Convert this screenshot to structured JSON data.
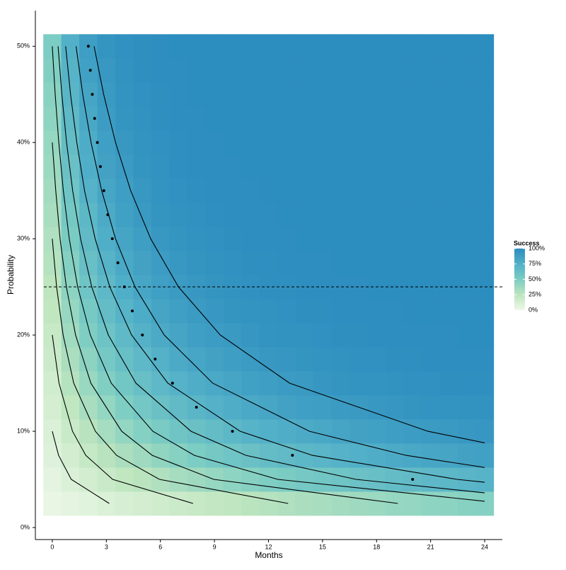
{
  "chart_data": {
    "type": "heatmap",
    "x_label": "Months",
    "y_label": "Probability",
    "xlim": [
      -0.94,
      24.98
    ],
    "ylim": [
      -1.25,
      53.7
    ],
    "xticks": [
      0,
      3,
      6,
      9,
      12,
      15,
      18,
      21,
      24
    ],
    "yticks": [
      {
        "value": 0,
        "label": "0%"
      },
      {
        "value": 10,
        "label": "10%"
      },
      {
        "value": 20,
        "label": "20%"
      },
      {
        "value": 30,
        "label": "30%"
      },
      {
        "value": 40,
        "label": "40%"
      },
      {
        "value": 50,
        "label": "50%"
      }
    ],
    "cell_x": [
      0,
      1,
      2,
      3,
      4,
      5,
      6,
      7,
      8,
      9,
      10,
      11,
      12,
      13,
      14,
      15,
      16,
      17,
      18,
      19,
      20,
      21,
      22,
      23,
      24
    ],
    "cell_y": [
      2.5,
      5,
      7.5,
      10,
      12.5,
      15,
      17.5,
      20,
      22.5,
      25,
      27.5,
      30,
      32.5,
      35,
      37.5,
      40,
      42.5,
      45,
      47.5,
      50
    ],
    "z": [
      [
        3,
        5,
        7,
        10,
        12,
        14,
        16,
        18,
        20,
        22,
        24,
        26,
        28,
        30,
        32,
        33,
        35,
        37,
        38,
        40,
        41,
        43,
        44,
        46,
        47
      ],
      [
        5,
        10,
        14,
        19,
        23,
        26,
        30,
        34,
        37,
        40,
        43,
        46,
        49,
        51,
        54,
        56,
        58,
        60,
        62,
        64,
        66,
        68,
        69,
        71,
        72
      ],
      [
        8,
        14,
        21,
        27,
        32,
        37,
        42,
        46,
        50,
        54,
        58,
        61,
        64,
        66,
        69,
        71,
        73,
        75,
        77,
        79,
        81,
        82,
        83,
        85,
        86
      ],
      [
        10,
        19,
        27,
        34,
        41,
        47,
        52,
        57,
        61,
        65,
        69,
        72,
        75,
        77,
        79,
        81,
        83,
        85,
        86,
        88,
        89,
        90,
        91,
        92,
        93
      ],
      [
        13,
        23,
        33,
        41,
        49,
        55,
        61,
        66,
        70,
        74,
        77,
        80,
        82,
        85,
        87,
        88,
        90,
        91,
        92,
        93,
        94,
        95,
        95,
        96,
        96
      ],
      [
        15,
        28,
        39,
        48,
        56,
        62,
        68,
        73,
        77,
        80,
        83,
        86,
        88,
        90,
        91,
        93,
        94,
        95,
        95,
        96,
        97,
        97,
        98,
        98,
        98
      ],
      [
        18,
        32,
        44,
        54,
        62,
        68,
        74,
        79,
        82,
        85,
        88,
        90,
        92,
        93,
        94,
        95,
        96,
        97,
        97,
        98,
        98,
        99,
        99,
        99,
        99
      ],
      [
        20,
        36,
        49,
        59,
        67,
        74,
        79,
        83,
        87,
        89,
        91,
        93,
        95,
        96,
        96,
        97,
        98,
        98,
        99,
        99,
        99,
        99,
        99,
        100,
        100
      ],
      [
        23,
        40,
        53,
        64,
        72,
        78,
        83,
        87,
        90,
        92,
        94,
        95,
        96,
        97,
        98,
        98,
        99,
        99,
        99,
        99,
        100,
        100,
        100,
        100,
        100
      ],
      [
        25,
        44,
        58,
        68,
        76,
        82,
        87,
        90,
        92,
        94,
        96,
        97,
        98,
        98,
        99,
        99,
        99,
        99,
        100,
        100,
        100,
        100,
        100,
        100,
        100
      ],
      [
        28,
        47,
        62,
        72,
        80,
        85,
        89,
        92,
        94,
        96,
        97,
        98,
        98,
        99,
        99,
        99,
        100,
        100,
        100,
        100,
        100,
        100,
        100,
        100,
        100
      ],
      [
        30,
        51,
        66,
        76,
        83,
        88,
        92,
        94,
        96,
        97,
        98,
        99,
        99,
        99,
        100,
        100,
        100,
        100,
        100,
        100,
        100,
        100,
        100,
        100,
        100
      ],
      [
        33,
        54,
        69,
        79,
        86,
        91,
        94,
        96,
        97,
        98,
        99,
        99,
        99,
        100,
        100,
        100,
        100,
        100,
        100,
        100,
        100,
        100,
        100,
        100,
        100
      ],
      [
        35,
        58,
        73,
        82,
        88,
        92,
        95,
        97,
        98,
        99,
        99,
        99,
        100,
        100,
        100,
        100,
        100,
        100,
        100,
        100,
        100,
        100,
        100,
        100,
        100
      ],
      [
        38,
        61,
        76,
        85,
        90,
        94,
        96,
        98,
        99,
        99,
        99,
        100,
        100,
        100,
        100,
        100,
        100,
        100,
        100,
        100,
        100,
        100,
        100,
        100,
        100
      ],
      [
        40,
        64,
        78,
        87,
        92,
        95,
        97,
        98,
        99,
        99,
        100,
        100,
        100,
        100,
        100,
        100,
        100,
        100,
        100,
        100,
        100,
        100,
        100,
        100,
        100
      ],
      [
        43,
        67,
        81,
        89,
        94,
        96,
        98,
        99,
        99,
        100,
        100,
        100,
        100,
        100,
        100,
        100,
        100,
        100,
        100,
        100,
        100,
        100,
        100,
        100,
        100
      ],
      [
        45,
        70,
        83,
        91,
        95,
        97,
        98,
        99,
        100,
        100,
        100,
        100,
        100,
        100,
        100,
        100,
        100,
        100,
        100,
        100,
        100,
        100,
        100,
        100,
        100
      ],
      [
        48,
        72,
        86,
        92,
        96,
        98,
        99,
        99,
        100,
        100,
        100,
        100,
        100,
        100,
        100,
        100,
        100,
        100,
        100,
        100,
        100,
        100,
        100,
        100,
        100
      ],
      [
        50,
        75,
        88,
        94,
        97,
        98,
        99,
        100,
        100,
        100,
        100,
        100,
        100,
        100,
        100,
        100,
        100,
        100,
        100,
        100,
        100,
        100,
        100,
        100,
        100
      ]
    ],
    "zlim": [
      0,
      100
    ],
    "colorscale": [
      "#eef8e8",
      "#bde5be",
      "#7ccdc3",
      "#52b0c8",
      "#2c8dbf"
    ],
    "legend_title": "Success",
    "legend_ticks": [
      {
        "value": 0,
        "label": "0%"
      },
      {
        "value": 25,
        "label": "25%"
      },
      {
        "value": 50,
        "label": "50%"
      },
      {
        "value": 75,
        "label": "75%"
      },
      {
        "value": 100,
        "label": "100%"
      }
    ],
    "contours": [
      {
        "x": [
          0,
          0.35,
          1.05,
          3.16
        ],
        "y": [
          10,
          7.5,
          5,
          2.5
        ]
      },
      {
        "x": [
          0,
          0.37,
          1.12,
          1.86,
          3.35,
          7.81
        ],
        "y": [
          20,
          15,
          10,
          7.5,
          5,
          2.5
        ]
      },
      {
        "x": [
          0,
          0.24,
          0.6,
          1.19,
          2.39,
          3.57,
          5.95,
          13.09
        ],
        "y": [
          30,
          25,
          20,
          15,
          10,
          7.5,
          5,
          2.5
        ]
      },
      {
        "x": [
          0,
          0.19,
          0.43,
          0.78,
          1.29,
          2.14,
          3.85,
          5.55,
          8.96,
          19.18
        ],
        "y": [
          40,
          35,
          30,
          25,
          20,
          15,
          10,
          7.5,
          5,
          2.5
        ]
      },
      {
        "x": [
          0,
          0.16,
          0.36,
          0.61,
          0.94,
          1.41,
          2.11,
          3.27,
          5.58,
          7.89,
          12.51,
          24
        ],
        "y": [
          50,
          45,
          40,
          35,
          30,
          25,
          20,
          15,
          10,
          7.5,
          5,
          2.73
        ]
      },
      {
        "x": [
          0.32,
          0.53,
          0.79,
          1.13,
          1.57,
          2.19,
          3.11,
          4.64,
          7.7,
          10.75,
          16.86,
          24
        ],
        "y": [
          50,
          45,
          40,
          35,
          30,
          25,
          20,
          15,
          10,
          7.5,
          5,
          3.6
        ]
      },
      {
        "x": [
          0.74,
          1.01,
          1.36,
          1.79,
          2.38,
          3.19,
          4.4,
          6.41,
          10.43,
          14.44,
          22.47,
          24
        ],
        "y": [
          50,
          45,
          40,
          35,
          30,
          25,
          20,
          15,
          10,
          7.5,
          5,
          4.7
        ]
      },
      {
        "x": [
          1.32,
          1.69,
          2.15,
          2.74,
          3.51,
          4.59,
          6.21,
          8.9,
          14.28,
          19.64,
          24
        ],
        "y": [
          50,
          45,
          40,
          35,
          30,
          25,
          20,
          15,
          10,
          7.5,
          6.24
        ]
      },
      {
        "x": [
          2.32,
          2.85,
          3.51,
          4.35,
          5.46,
          7.0,
          9.32,
          13.17,
          20.85,
          24
        ],
        "y": [
          50,
          45,
          40,
          35,
          30,
          25,
          20,
          15,
          10,
          8.8
        ]
      }
    ],
    "points": {
      "x": [
        2,
        2.11,
        2.22,
        2.35,
        2.5,
        2.67,
        2.86,
        3.08,
        3.33,
        3.64,
        4,
        4.44,
        5,
        5.71,
        6.67,
        8,
        10,
        13.33,
        20
      ],
      "y": [
        50,
        47.5,
        45,
        42.5,
        40,
        37.5,
        35,
        32.5,
        30,
        27.5,
        25,
        22.5,
        20,
        17.5,
        15,
        12.5,
        10,
        7.5,
        5
      ]
    },
    "hline": 25
  }
}
